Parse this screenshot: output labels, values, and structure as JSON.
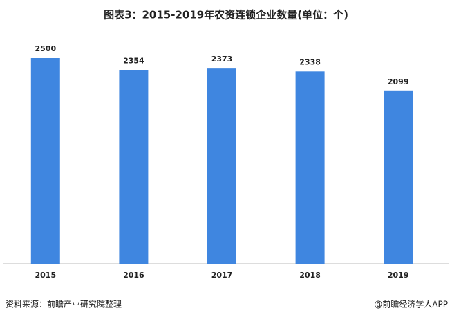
{
  "chart_data": {
    "type": "bar",
    "title": "图表3：2015-2019年农资连锁企业数量(单位：个)",
    "categories": [
      "2015",
      "2016",
      "2017",
      "2018",
      "2019"
    ],
    "values": [
      2500,
      2354,
      2373,
      2338,
      2099
    ],
    "color": "#3f86e0",
    "source": "资料来源：前瞻产业研究院整理",
    "credit": "@前瞻经济学人APP"
  }
}
